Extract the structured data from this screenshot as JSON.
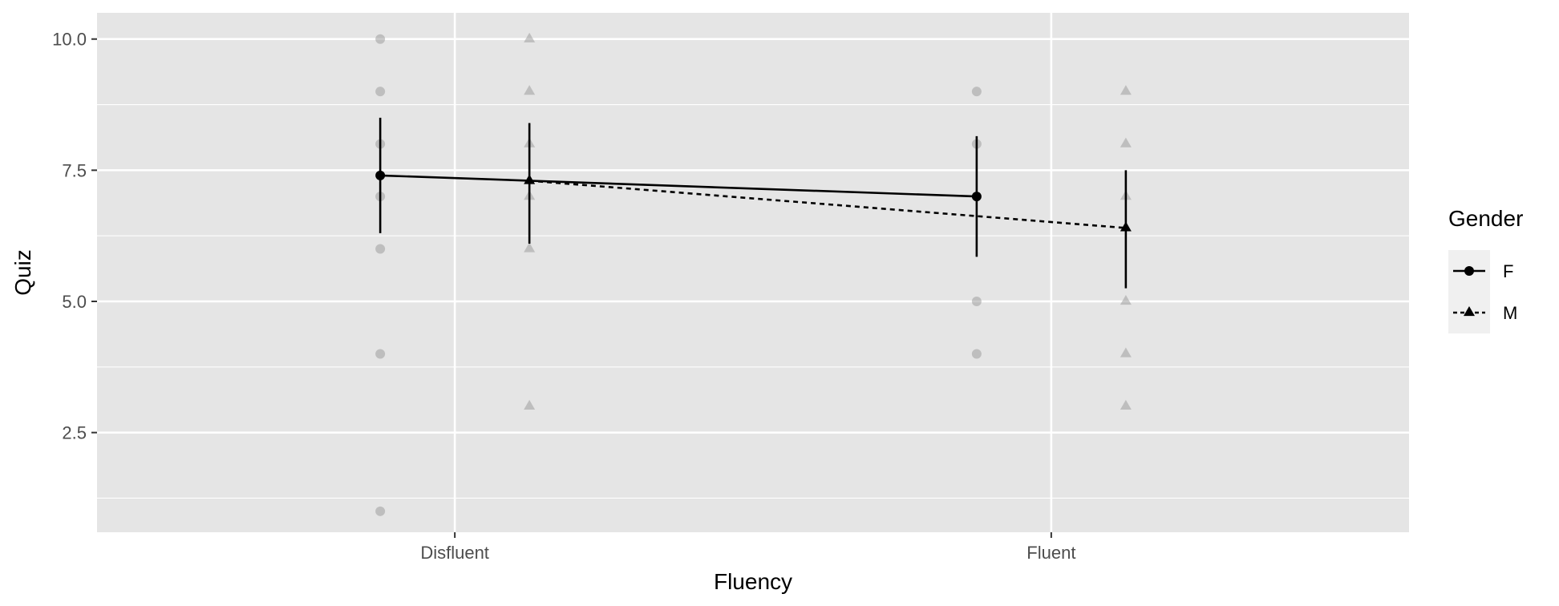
{
  "chart_data": {
    "type": "line",
    "title": "",
    "xlabel": "Fluency",
    "ylabel": "Quiz",
    "categories": [
      "Disfluent",
      "Fluent"
    ],
    "ylim": [
      0.6,
      10.5
    ],
    "y_ticks": [
      2.5,
      5.0,
      7.5,
      10.0
    ],
    "y_tick_labels": [
      "2.5",
      "5.0",
      "7.5",
      "10.0"
    ],
    "grid": true,
    "legend": {
      "title": "Gender",
      "position": "right"
    },
    "series": [
      {
        "name": "F",
        "marker": "circle",
        "line_style": "solid",
        "means": [
          7.4,
          7.0
        ],
        "error_low": [
          6.3,
          5.85
        ],
        "error_high": [
          8.5,
          8.15
        ],
        "raw_points": [
          {
            "category": "Disfluent",
            "values": [
              10,
              9,
              8,
              7,
              6,
              4,
              1
            ]
          },
          {
            "category": "Fluent",
            "values": [
              9,
              8,
              5,
              4
            ]
          }
        ]
      },
      {
        "name": "M",
        "marker": "triangle",
        "line_style": "dashed",
        "means": [
          7.3,
          6.4
        ],
        "error_low": [
          6.1,
          5.25
        ],
        "error_high": [
          8.4,
          7.5
        ],
        "raw_points": [
          {
            "category": "Disfluent",
            "values": [
              10,
              9,
              8,
              7,
              6,
              3
            ]
          },
          {
            "category": "Fluent",
            "values": [
              9,
              8,
              7,
              5,
              4,
              3
            ]
          }
        ]
      }
    ],
    "colors": {
      "panel_background": "#e5e5e5",
      "gridline": "#ffffff",
      "line": "#000000",
      "raw_point": "#9e9e9e",
      "legend_key_background": "#f0f0f0"
    }
  }
}
